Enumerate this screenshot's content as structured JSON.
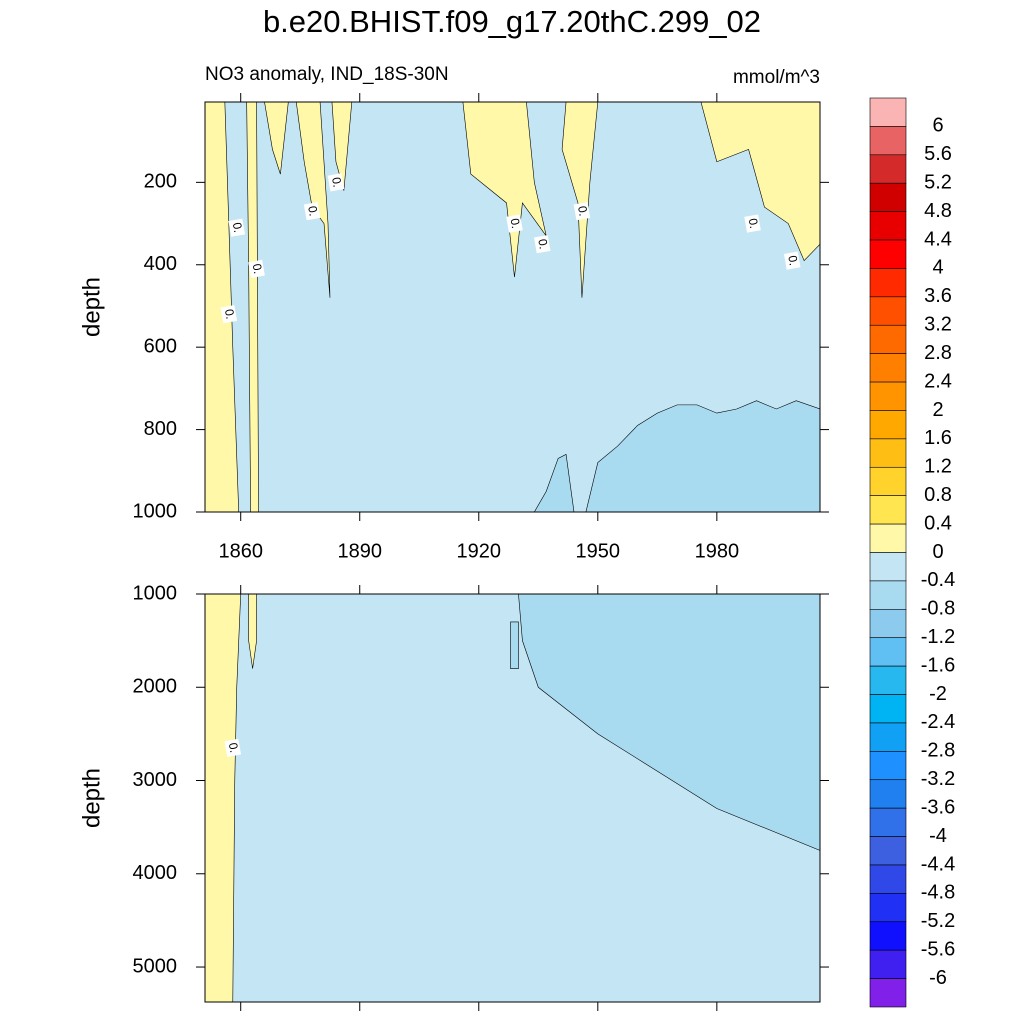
{
  "chart_data": {
    "type": "contour",
    "title": "b.e20.BHIST.f09_g17.20thC.299_02",
    "panels": [
      {
        "subtitle_left": "NO3 anomaly, IND_18S-30N",
        "subtitle_right": "mmol/m^3",
        "y_label": "depth",
        "xlim": [
          1851,
          2006
        ],
        "xticks": [
          1860,
          1890,
          1920,
          1950,
          1980
        ],
        "ylim": [
          5,
          1000
        ],
        "yticks": [
          200,
          400,
          600,
          800,
          1000
        ],
        "background": "#c4e6f4",
        "regions": [
          {
            "color": "#fff8a8",
            "x": [
              1851,
              1856,
              1857,
              1858,
              1859.5,
              1851
            ],
            "y": [
              5,
              5,
              300,
              600,
              1000,
              1000
            ]
          },
          {
            "color": "#fff8a8",
            "x": [
              1861.5,
              1864,
              1864.5,
              1862.5,
              1862
            ],
            "y": [
              5,
              5,
              1000,
              1000,
              400
            ]
          },
          {
            "color": "#fff8a8",
            "x": [
              1866,
              1872,
              1870,
              1868
            ],
            "y": [
              5,
              5,
              180,
              120
            ]
          },
          {
            "color": "#fff8a8",
            "x": [
              1874,
              1880,
              1882,
              1882.5,
              1881,
              1878,
              1876
            ],
            "y": [
              5,
              5,
              300,
              480,
              300,
              260,
              150
            ]
          },
          {
            "color": "#fff8a8",
            "x": [
              1883,
              1888,
              1886,
              1884
            ],
            "y": [
              5,
              5,
              220,
              150
            ]
          },
          {
            "color": "#fff8a8",
            "x": [
              1916,
              1932,
              1934,
              1937,
              1931,
              1929,
              1927,
              1918
            ],
            "y": [
              5,
              5,
              200,
              330,
              250,
              430,
              250,
              180
            ]
          },
          {
            "color": "#fff8a8",
            "x": [
              1942,
              1950,
              1948,
              1946,
              1945,
              1941
            ],
            "y": [
              5,
              5,
              200,
              480,
              250,
              120
            ]
          },
          {
            "color": "#fff8a8",
            "x": [
              1976,
              2006,
              2006,
              2002,
              1998,
              1992,
              1988,
              1980
            ],
            "y": [
              5,
              5,
              350,
              390,
              300,
              260,
              120,
              150
            ]
          },
          {
            "color": "#a8daf0",
            "x": [
              1934,
              1937,
              1940,
              1942,
              1944,
              1947,
              1950,
              1955,
              1960,
              1965,
              1970,
              1975,
              1980,
              1985,
              1990,
              1995,
              2000,
              2006,
              2006
            ],
            "y": [
              1000,
              950,
              870,
              860,
              1000,
              1000,
              880,
              840,
              790,
              760,
              740,
              740,
              760,
              750,
              730,
              750,
              730,
              750,
              1000
            ]
          }
        ],
        "contour_labels": [
          {
            "text": "0.",
            "x": 1859,
            "y": 310
          },
          {
            "text": "0.",
            "x": 1857,
            "y": 520
          },
          {
            "text": "0.",
            "x": 1864,
            "y": 410
          },
          {
            "text": "0.",
            "x": 1878,
            "y": 270
          },
          {
            "text": "0.",
            "x": 1884,
            "y": 200
          },
          {
            "text": "0.",
            "x": 1929,
            "y": 300
          },
          {
            "text": "0.",
            "x": 1936,
            "y": 350
          },
          {
            "text": "0.",
            "x": 1946,
            "y": 270
          },
          {
            "text": "0.",
            "x": 1989,
            "y": 300
          },
          {
            "text": "0.",
            "x": 1999,
            "y": 390
          }
        ]
      },
      {
        "y_label": "depth",
        "ylim": [
          1000,
          5375
        ],
        "yticks": [
          1000,
          2000,
          3000,
          4000,
          5000
        ],
        "background": "#c4e6f4",
        "regions": [
          {
            "color": "#fff8a8",
            "x": [
              1851,
              1860,
              1859,
              1858.5,
              1858,
              1851
            ],
            "y": [
              1000,
              1000,
              2000,
              3000,
              5375,
              5375
            ]
          },
          {
            "color": "#fff8a8",
            "x": [
              1862,
              1864,
              1864,
              1863,
              1862
            ],
            "y": [
              1000,
              1000,
              1500,
              1800,
              1500
            ]
          },
          {
            "color": "#a8daf0",
            "x": [
              1930,
              2006,
              2006,
              1980,
              1950,
              1935,
              1931
            ],
            "y": [
              1000,
              1000,
              3750,
              3300,
              2500,
              2000,
              1500
            ]
          },
          {
            "color": "#a8daf0",
            "x": [
              1928,
              1930,
              1930,
              1928
            ],
            "y": [
              1300,
              1300,
              1800,
              1800
            ]
          }
        ],
        "contour_labels": [
          {
            "text": "0.",
            "x": 1858,
            "y": 2650
          }
        ]
      }
    ],
    "colorbar": {
      "levels": [
        6,
        5.6,
        5.2,
        4.8,
        4.4,
        4,
        3.6,
        3.2,
        2.8,
        2.4,
        2,
        1.6,
        1.2,
        0.8,
        0.4,
        0,
        -0.4,
        -0.8,
        -1.2,
        -1.6,
        -2,
        -2.4,
        -2.8,
        -3.2,
        -3.6,
        -4,
        -4.4,
        -4.8,
        -5.2,
        -5.6,
        -6
      ],
      "colors": [
        "#fbb4b4",
        "#e86464",
        "#d42a2a",
        "#d00000",
        "#e80000",
        "#ff0000",
        "#ff2a00",
        "#ff5000",
        "#ff6a00",
        "#ff8000",
        "#ff9400",
        "#ffa800",
        "#ffbe14",
        "#ffd22c",
        "#ffe650",
        "#fff8a8",
        "#c4e6f4",
        "#a8daf0",
        "#8ccaee",
        "#60c0f4",
        "#28b8f0",
        "#00b4f4",
        "#10a0f4",
        "#1e90ff",
        "#2080f0",
        "#3070e8",
        "#3c60e0",
        "#3048e8",
        "#2030f4",
        "#1010ff",
        "#4020f0",
        "#8020e8"
      ]
    }
  }
}
